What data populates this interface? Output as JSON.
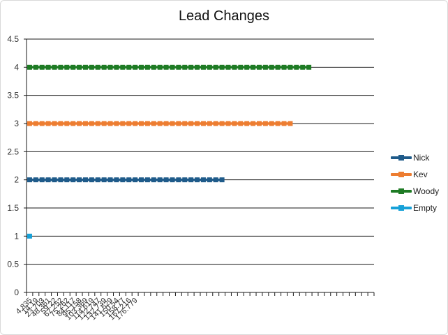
{
  "chart_data": {
    "type": "line",
    "title": "Lead Changes",
    "xlabel": "",
    "ylabel": "",
    "ylim": [
      0,
      4.5
    ],
    "y_ticks": [
      "0",
      "0.5",
      "1",
      "1.5",
      "2",
      "2.5",
      "3",
      "3.5",
      "4",
      "4.5"
    ],
    "x_tick_labels": [
      "4.835",
      "14.19",
      "23.703",
      "48.361",
      "59.22",
      "67.252",
      "75.262",
      "84.117",
      "95.158",
      "103.369",
      "114.619",
      "122.747",
      "132.739",
      "141.629",
      "150.54",
      "158.77",
      "167.216",
      "176.779"
    ],
    "x_category_count": 56,
    "grid": true,
    "legend_position": "right",
    "series": [
      {
        "name": "Nick",
        "color": "#1f5b8a",
        "start_index": 0,
        "count": 32,
        "value": 2
      },
      {
        "name": "Kev",
        "color": "#ed7d31",
        "start_index": 0,
        "count": 43,
        "value": 3
      },
      {
        "name": "Woody",
        "color": "#1e7b24",
        "start_index": 0,
        "count": 46,
        "value": 4
      },
      {
        "name": "Empty",
        "color": "#17a1d8",
        "start_index": 0,
        "count": 1,
        "value": 1
      }
    ]
  }
}
